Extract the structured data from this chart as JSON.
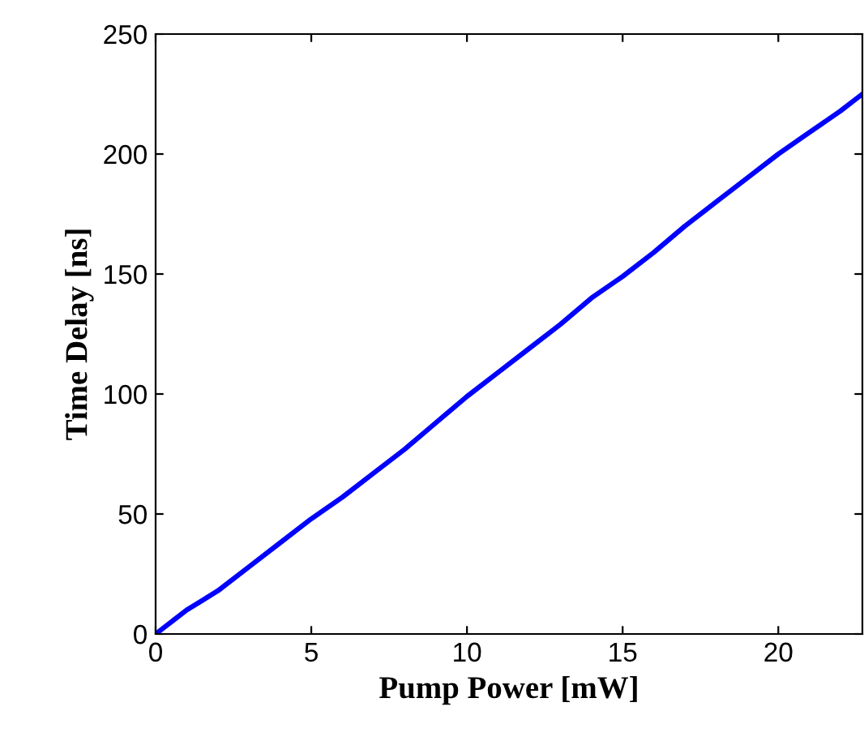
{
  "chart_data": {
    "type": "line",
    "xlabel": "Pump Power [mW]",
    "ylabel": "Time Delay [ns]",
    "x": [
      0,
      0.3,
      0.6,
      1,
      1.5,
      2,
      3,
      4,
      5,
      6,
      7,
      8,
      9,
      10,
      11,
      12,
      13,
      14,
      15,
      16,
      17,
      18,
      19,
      20,
      21,
      22,
      22.7
    ],
    "series": [
      {
        "color": "#0000ff",
        "values": [
          0,
          3,
          6,
          10,
          14,
          18,
          28,
          38,
          48,
          57,
          67,
          77,
          88,
          99,
          109,
          119,
          129,
          140,
          149,
          159,
          170,
          180,
          190,
          200,
          209,
          218,
          225
        ]
      }
    ],
    "xlim": [
      0,
      22.7
    ],
    "ylim": [
      0,
      250
    ],
    "xticks": [
      0,
      5,
      10,
      15,
      20
    ],
    "yticks": [
      0,
      50,
      100,
      150,
      200,
      250
    ],
    "grid": false,
    "legend": false,
    "marker": "none",
    "line_style": "solid"
  }
}
